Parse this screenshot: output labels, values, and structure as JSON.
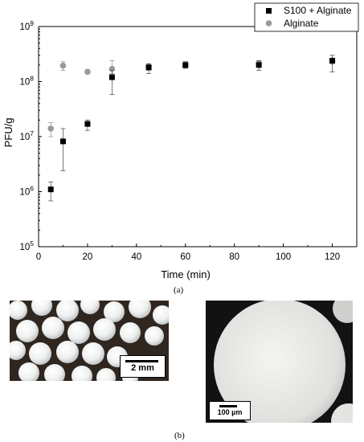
{
  "chart_data": {
    "type": "scatter",
    "xlabel": "Time (min)",
    "ylabel": "PFU/g",
    "xlim": [
      0,
      130
    ],
    "ylim": [
      100000,
      1000000000
    ],
    "yscale": "log",
    "xticks": [
      "0",
      "20",
      "40",
      "60",
      "80",
      "100",
      "120"
    ],
    "yticks": [
      "10^5",
      "10^6",
      "10^7",
      "10^8",
      "10^9"
    ],
    "legend_position": "top-right",
    "series": [
      {
        "name": "S100 + Alginate",
        "marker": "square",
        "color": "#000000",
        "x": [
          5,
          10,
          20,
          30,
          45,
          60,
          90,
          120
        ],
        "y": [
          1100000,
          8200000,
          17000000,
          120000000,
          180000000,
          200000000,
          200000000,
          240000000
        ],
        "err_low": [
          680000,
          2400000,
          13000000,
          58000000,
          140000000,
          175000000,
          160000000,
          150000000
        ],
        "err_high": [
          1500000,
          14000000,
          20000000,
          160000000,
          210000000,
          230000000,
          240000000,
          300000000
        ]
      },
      {
        "name": "Alginate",
        "marker": "circle",
        "color": "#9a9a9a",
        "x": [
          5,
          10,
          20,
          30,
          45,
          60,
          90,
          120
        ],
        "y": [
          14000000,
          195000000,
          150000000,
          170000000,
          190000000,
          195000000,
          215000000,
          230000000
        ],
        "err_low": [
          10000000,
          160000000,
          140000000,
          140000000,
          175000000,
          175000000,
          200000000,
          210000000
        ],
        "err_high": [
          18000000,
          230000000,
          165000000,
          240000000,
          205000000,
          215000000,
          235000000,
          255000000
        ]
      }
    ]
  },
  "captions": {
    "a": "(a)",
    "b": "(b)"
  },
  "scale_bars": {
    "left": "2 mm",
    "right": "100 µm"
  }
}
